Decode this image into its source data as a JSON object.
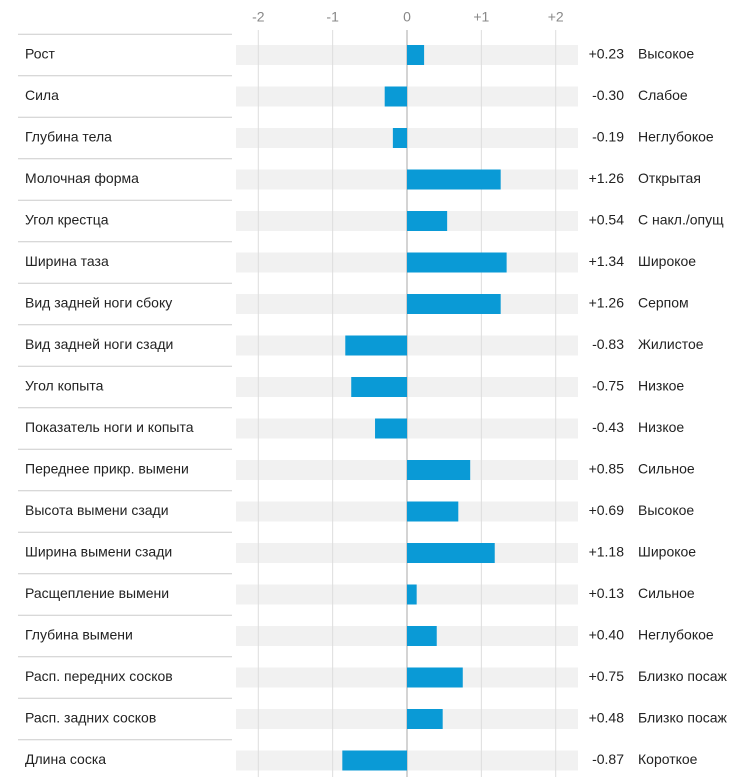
{
  "chart_data": {
    "type": "bar",
    "orientation": "horizontal",
    "categories": [
      "Рост",
      "Сила",
      "Глубина тела",
      "Молочная форма",
      "Угол крестца",
      "Ширина таза",
      "Вид задней ноги сбоку",
      "Вид задней ноги сзади",
      "Угол копыта",
      "Показатель ноги и копыта",
      "Переднее прикр. вымени",
      "Высота вымени сзади",
      "Ширина вымени сзади",
      "Расщепление вымени",
      "Глубина вымени",
      "Расп. передних сосков",
      "Расп. задних сосков",
      "Длина соска"
    ],
    "values": [
      0.23,
      -0.3,
      -0.19,
      1.26,
      0.54,
      1.34,
      1.26,
      -0.83,
      -0.75,
      -0.43,
      0.85,
      0.69,
      1.18,
      0.13,
      0.4,
      0.75,
      0.48,
      -0.87
    ],
    "value_labels": [
      "+0.23",
      "-0.30",
      "-0.19",
      "+1.26",
      "+0.54",
      "+1.34",
      "+1.26",
      "-0.83",
      "-0.75",
      "-0.43",
      "+0.85",
      "+0.69",
      "+1.18",
      "+0.13",
      "+0.40",
      "+0.75",
      "+0.48",
      "-0.87"
    ],
    "descriptors": [
      "Высокое",
      "Слабое",
      "Неглубокое",
      "Открытая",
      "С накл./опущ",
      "Широкое",
      "Серпом",
      "Жилистое",
      "Низкое",
      "Низкое",
      "Сильное",
      "Высокое",
      "Широкое",
      "Сильное",
      "Неглубокое",
      "Близко посаж",
      "Близко посаж",
      "Короткое"
    ],
    "color": "#0a9ad6",
    "xlim": [
      -2.3,
      2.3
    ],
    "xticks": [
      -2,
      -1,
      0,
      {
        "value": 1,
        "label": "+1"
      },
      {
        "value": 2,
        "label": "+2"
      }
    ],
    "grid": true
  }
}
